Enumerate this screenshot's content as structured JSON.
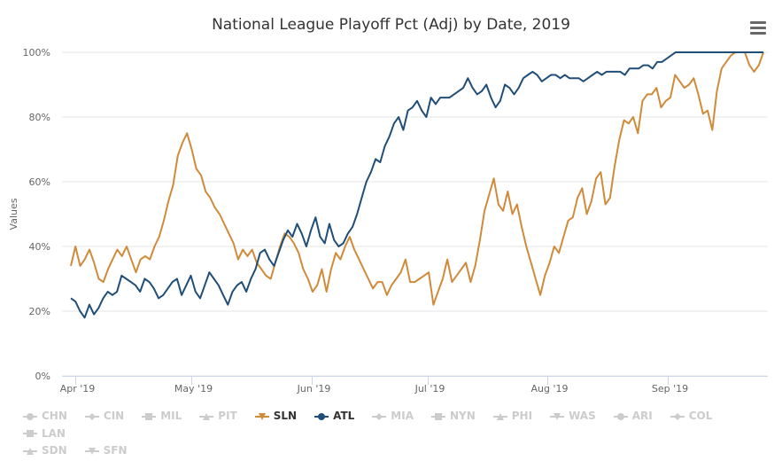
{
  "chart_data": {
    "type": "line",
    "title": "National League Playoff Pct (Adj) by Date, 2019",
    "xlabel": "",
    "ylabel": "Values",
    "ylim": [
      0,
      100
    ],
    "y_ticks": [
      "0%",
      "20%",
      "40%",
      "60%",
      "80%",
      "100%"
    ],
    "y_tick_values": [
      0,
      20,
      40,
      60,
      80,
      100
    ],
    "x_ticks": [
      "Apr '19",
      "May '19",
      "Jun '19",
      "Jul '19",
      "Aug '19",
      "Sep '19"
    ],
    "x_tick_days": [
      4,
      34,
      65,
      95,
      126,
      157
    ],
    "x_start": "2019-03-28",
    "x_step_days": 2,
    "grid": true,
    "legend_position": "bottom",
    "series": [
      {
        "name": "SLN",
        "color": "#d08a3a",
        "visible": true,
        "values": [
          34,
          40,
          34,
          36,
          39,
          35,
          30,
          29,
          33,
          36,
          39,
          37,
          40,
          36,
          32,
          36,
          37,
          36,
          40,
          43,
          48,
          54,
          59,
          68,
          72,
          75,
          70,
          64,
          62,
          57,
          55,
          52,
          50,
          47,
          44,
          41,
          36,
          39,
          37,
          39,
          35,
          33,
          31,
          30,
          35,
          40,
          44,
          43,
          41,
          38,
          33,
          30,
          26,
          28,
          33,
          26,
          33,
          38,
          36,
          40,
          43,
          39,
          36,
          33,
          30,
          27,
          29,
          29,
          25,
          28,
          30,
          32,
          36,
          29,
          29,
          30,
          31,
          32,
          22,
          26,
          30,
          36,
          29,
          31,
          33,
          35,
          29,
          34,
          42,
          51,
          56,
          61,
          53,
          51,
          57,
          50,
          53,
          46,
          40,
          35,
          30,
          25,
          31,
          35,
          40,
          38,
          43,
          48,
          49,
          55,
          58,
          50,
          54,
          61,
          63,
          53,
          55,
          65,
          73,
          79,
          78,
          80,
          75,
          85,
          87,
          87,
          89,
          83,
          85,
          86,
          93,
          91,
          89,
          90,
          92,
          87,
          81,
          82,
          76,
          88,
          95,
          97,
          99,
          100,
          100,
          100,
          96,
          94,
          96,
          100
        ]
      },
      {
        "name": "ATL",
        "color": "#1f4e79",
        "visible": true,
        "values": [
          24,
          23,
          20,
          18,
          22,
          19,
          21,
          24,
          26,
          25,
          26,
          31,
          30,
          29,
          28,
          26,
          30,
          29,
          27,
          24,
          25,
          27,
          29,
          30,
          25,
          28,
          31,
          26,
          24,
          28,
          32,
          30,
          28,
          25,
          22,
          26,
          28,
          29,
          26,
          30,
          33,
          38,
          39,
          36,
          34,
          38,
          42,
          45,
          43,
          47,
          44,
          40,
          45,
          49,
          43,
          41,
          47,
          42,
          40,
          41,
          44,
          46,
          50,
          55,
          60,
          63,
          67,
          66,
          71,
          74,
          78,
          80,
          76,
          82,
          83,
          85,
          82,
          80,
          86,
          84,
          86,
          86,
          86,
          87,
          88,
          89,
          92,
          89,
          87,
          88,
          90,
          86,
          83,
          85,
          90,
          89,
          87,
          89,
          92,
          93,
          94,
          93,
          91,
          92,
          93,
          93,
          92,
          93,
          92,
          92,
          92,
          91,
          92,
          93,
          94,
          93,
          94,
          94,
          94,
          94,
          93,
          95,
          95,
          95,
          96,
          96,
          95,
          97,
          97,
          98,
          99,
          100,
          100,
          100,
          100,
          100,
          100,
          100,
          100,
          100,
          100,
          100,
          100,
          100,
          100,
          100,
          100,
          100,
          100,
          100,
          100
        ]
      },
      {
        "name": "CHN",
        "color": "#cccccc",
        "visible": false,
        "values": []
      },
      {
        "name": "CIN",
        "color": "#cccccc",
        "visible": false,
        "values": []
      },
      {
        "name": "MIL",
        "color": "#cccccc",
        "visible": false,
        "values": []
      },
      {
        "name": "PIT",
        "color": "#cccccc",
        "visible": false,
        "values": []
      },
      {
        "name": "MIA",
        "color": "#cccccc",
        "visible": false,
        "values": []
      },
      {
        "name": "NYN",
        "color": "#cccccc",
        "visible": false,
        "values": []
      },
      {
        "name": "PHI",
        "color": "#cccccc",
        "visible": false,
        "values": []
      },
      {
        "name": "WAS",
        "color": "#cccccc",
        "visible": false,
        "values": []
      },
      {
        "name": "ARI",
        "color": "#cccccc",
        "visible": false,
        "values": []
      },
      {
        "name": "COL",
        "color": "#cccccc",
        "visible": false,
        "values": []
      },
      {
        "name": "LAN",
        "color": "#cccccc",
        "visible": false,
        "values": []
      },
      {
        "name": "SDN",
        "color": "#cccccc",
        "visible": false,
        "values": []
      },
      {
        "name": "SFN",
        "color": "#cccccc",
        "visible": false,
        "values": []
      }
    ]
  },
  "legend": {
    "items": [
      {
        "label": "CHN",
        "marker": "circle",
        "active": false,
        "color": "#cccccc"
      },
      {
        "label": "CIN",
        "marker": "diamond",
        "active": false,
        "color": "#cccccc"
      },
      {
        "label": "MIL",
        "marker": "square",
        "active": false,
        "color": "#cccccc"
      },
      {
        "label": "PIT",
        "marker": "triangle",
        "active": false,
        "color": "#cccccc"
      },
      {
        "label": "SLN",
        "marker": "triangle-down",
        "active": true,
        "color": "#d08a3a"
      },
      {
        "label": "ATL",
        "marker": "circle",
        "active": true,
        "color": "#1f4e79"
      },
      {
        "label": "MIA",
        "marker": "diamond",
        "active": false,
        "color": "#cccccc"
      },
      {
        "label": "NYN",
        "marker": "square",
        "active": false,
        "color": "#cccccc"
      },
      {
        "label": "PHI",
        "marker": "triangle",
        "active": false,
        "color": "#cccccc"
      },
      {
        "label": "WAS",
        "marker": "triangle-down",
        "active": false,
        "color": "#cccccc"
      },
      {
        "label": "ARI",
        "marker": "circle",
        "active": false,
        "color": "#cccccc"
      },
      {
        "label": "COL",
        "marker": "diamond",
        "active": false,
        "color": "#cccccc"
      },
      {
        "label": "LAN",
        "marker": "square",
        "active": false,
        "color": "#cccccc"
      },
      {
        "label": "SDN",
        "marker": "triangle",
        "active": false,
        "color": "#cccccc"
      },
      {
        "label": "SFN",
        "marker": "triangle-down",
        "active": false,
        "color": "#cccccc"
      }
    ]
  },
  "menu": {
    "icon": "hamburger-menu-icon"
  }
}
